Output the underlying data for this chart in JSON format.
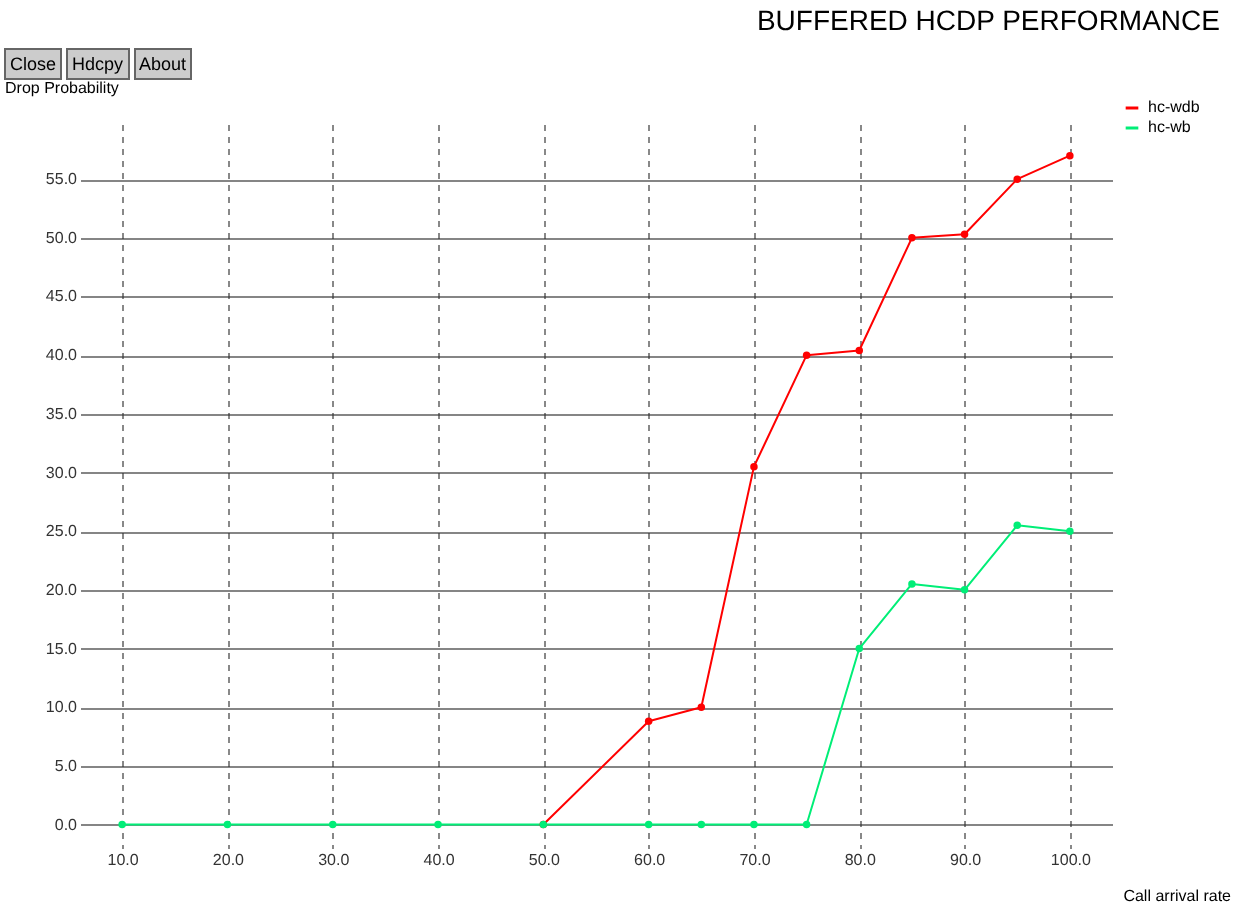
{
  "chart_data": {
    "type": "line",
    "title": "BUFFERED HCDP PERFORMANCE",
    "ylabel": "Drop Probability",
    "xlabel": "Call arrival rate",
    "annotations": [
      "Close",
      "Hdcpy",
      "About"
    ],
    "series": [
      {
        "name": "hc-wdb",
        "color": "#ff0000",
        "x": [
          50,
          60,
          65,
          70,
          75,
          80,
          85,
          90,
          95,
          100
        ],
        "values": [
          0,
          8.8,
          10,
          30.5,
          40,
          40.4,
          50,
          50.3,
          55,
          57
        ]
      },
      {
        "name": "hc-wb",
        "color": "#00ee77",
        "x": [
          10,
          20,
          30,
          40,
          50,
          60,
          65,
          70,
          75,
          80,
          85,
          90,
          95,
          100
        ],
        "values": [
          0,
          0,
          0,
          0,
          0,
          0,
          0,
          0,
          0,
          15,
          20.5,
          20,
          25.5,
          25
        ]
      }
    ],
    "xlim": [
      6,
      104
    ],
    "ylim": [
      -2,
      59.7
    ],
    "xticks": [
      {
        "value": 10,
        "label": "10.0"
      },
      {
        "value": 20,
        "label": "20.0"
      },
      {
        "value": 30,
        "label": "30.0"
      },
      {
        "value": 40,
        "label": "40.0"
      },
      {
        "value": 50,
        "label": "50.0"
      },
      {
        "value": 60,
        "label": "60.0"
      },
      {
        "value": 70,
        "label": "70.0"
      },
      {
        "value": 80,
        "label": "80.0"
      },
      {
        "value": 90,
        "label": "90.0"
      },
      {
        "value": 100,
        "label": "100.0"
      }
    ],
    "yticks": [
      {
        "value": 0,
        "label": "0.0"
      },
      {
        "value": 5,
        "label": "5.0"
      },
      {
        "value": 10,
        "label": "10.0"
      },
      {
        "value": 15,
        "label": "15.0"
      },
      {
        "value": 20,
        "label": "20.0"
      },
      {
        "value": 25,
        "label": "25.0"
      },
      {
        "value": 30,
        "label": "30.0"
      },
      {
        "value": 35,
        "label": "35.0"
      },
      {
        "value": 40,
        "label": "40.0"
      },
      {
        "value": 45,
        "label": "45.0"
      },
      {
        "value": 50,
        "label": "50.0"
      },
      {
        "value": 55,
        "label": "55.0"
      }
    ],
    "grid": true,
    "legend": "top right",
    "marker": "circle",
    "line_style": "solid"
  }
}
